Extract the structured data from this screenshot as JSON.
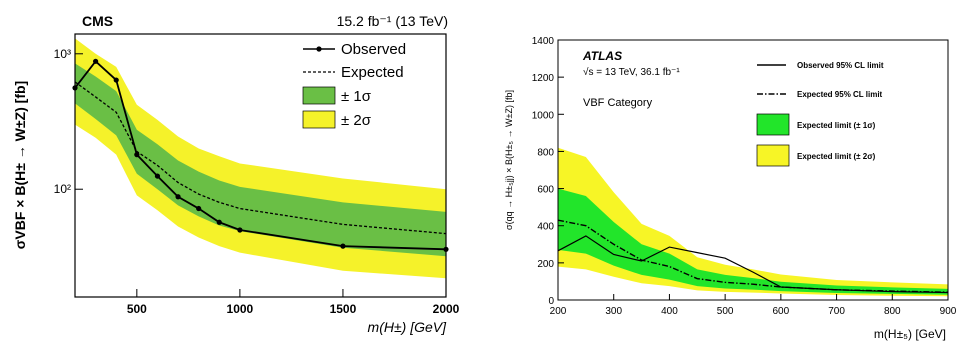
{
  "chart_data": [
    {
      "type": "line",
      "title_left": "CMS",
      "title_right": "15.2 fb⁻¹ (13 TeV)",
      "xlabel": "m(H±) [GeV]",
      "ylabel": "σVBF × B(H± → W±Z) [fb]",
      "yscale": "log",
      "xlim": [
        200,
        2000
      ],
      "ylim": [
        16,
        1400
      ],
      "xticks": [
        500,
        1000,
        1500,
        2000
      ],
      "yticks": [
        {
          "value": 100,
          "label": "10²"
        },
        {
          "value": 1000,
          "label": "10³"
        }
      ],
      "legend_position": "top-right",
      "legend": {
        "observed": "Observed",
        "expected": "Expected",
        "band1": "± 1σ",
        "band2": "± 2σ"
      },
      "colors": {
        "band1": "#6abf45",
        "band2": "#f5f22a",
        "line": "#000000"
      },
      "x": [
        200,
        300,
        400,
        500,
        600,
        700,
        800,
        900,
        1000,
        1500,
        2000
      ],
      "series": [
        {
          "name": "Observed",
          "values": [
            560,
            880,
            640,
            180,
            125,
            88,
            72,
            57,
            50,
            38,
            36
          ]
        },
        {
          "name": "Expected",
          "values": [
            620,
            480,
            370,
            190,
            150,
            112,
            92,
            80,
            72,
            55,
            47
          ]
        }
      ],
      "band_1sigma": {
        "low": [
          430,
          330,
          250,
          130,
          100,
          76,
          63,
          54,
          49,
          37,
          32
        ],
        "high": [
          850,
          680,
          530,
          275,
          215,
          163,
          135,
          116,
          104,
          80,
          68
        ]
      },
      "band_2sigma": {
        "low": [
          300,
          240,
          180,
          90,
          70,
          53,
          44,
          38,
          34,
          25,
          22
        ],
        "high": [
          1300,
          1000,
          800,
          420,
          325,
          245,
          200,
          175,
          155,
          120,
          100
        ]
      }
    },
    {
      "type": "line",
      "title": "ATLAS",
      "subtitle": "√s = 13 TeV, 36.1 fb⁻¹",
      "category_label": "VBF Category",
      "xlabel": "m(H±₅) [GeV]",
      "ylabel": "σ(qq → H±₅jj) × B(H±₅ → W±Z) [fb]",
      "xlim": [
        200,
        900
      ],
      "ylim": [
        0,
        1400
      ],
      "xticks": [
        200,
        300,
        400,
        500,
        600,
        700,
        800,
        900
      ],
      "yticks": [
        0,
        200,
        400,
        600,
        800,
        1000,
        1200,
        1400
      ],
      "legend_position": "top-right",
      "legend": {
        "observed": "Observed 95% CL limit",
        "expected": "Expected 95% CL limit",
        "band1": "Expected limit (± 1σ)",
        "band2": "Expected limit (± 2σ)"
      },
      "colors": {
        "band1": "#22e52a",
        "band2": "#f7f526",
        "line": "#000000"
      },
      "x": [
        200,
        250,
        300,
        350,
        400,
        450,
        500,
        550,
        600,
        700,
        800,
        900
      ],
      "series": [
        {
          "name": "Observed 95% CL limit",
          "values": [
            265,
            345,
            245,
            210,
            285,
            255,
            225,
            150,
            70,
            55,
            45,
            40
          ]
        },
        {
          "name": "Expected 95% CL limit",
          "values": [
            430,
            400,
            300,
            215,
            180,
            115,
            95,
            85,
            70,
            55,
            48,
            42
          ]
        }
      ],
      "band_1sigma": {
        "low": [
          270,
          250,
          185,
          135,
          110,
          75,
          62,
          56,
          48,
          38,
          33,
          28
        ],
        "high": [
          600,
          560,
          420,
          300,
          250,
          165,
          135,
          118,
          98,
          78,
          68,
          60
        ]
      },
      "band_2sigma": {
        "low": [
          180,
          165,
          125,
          90,
          75,
          52,
          44,
          40,
          35,
          27,
          23,
          20
        ],
        "high": [
          820,
          770,
          580,
          410,
          345,
          230,
          190,
          165,
          137,
          108,
          95,
          84
        ]
      }
    }
  ]
}
